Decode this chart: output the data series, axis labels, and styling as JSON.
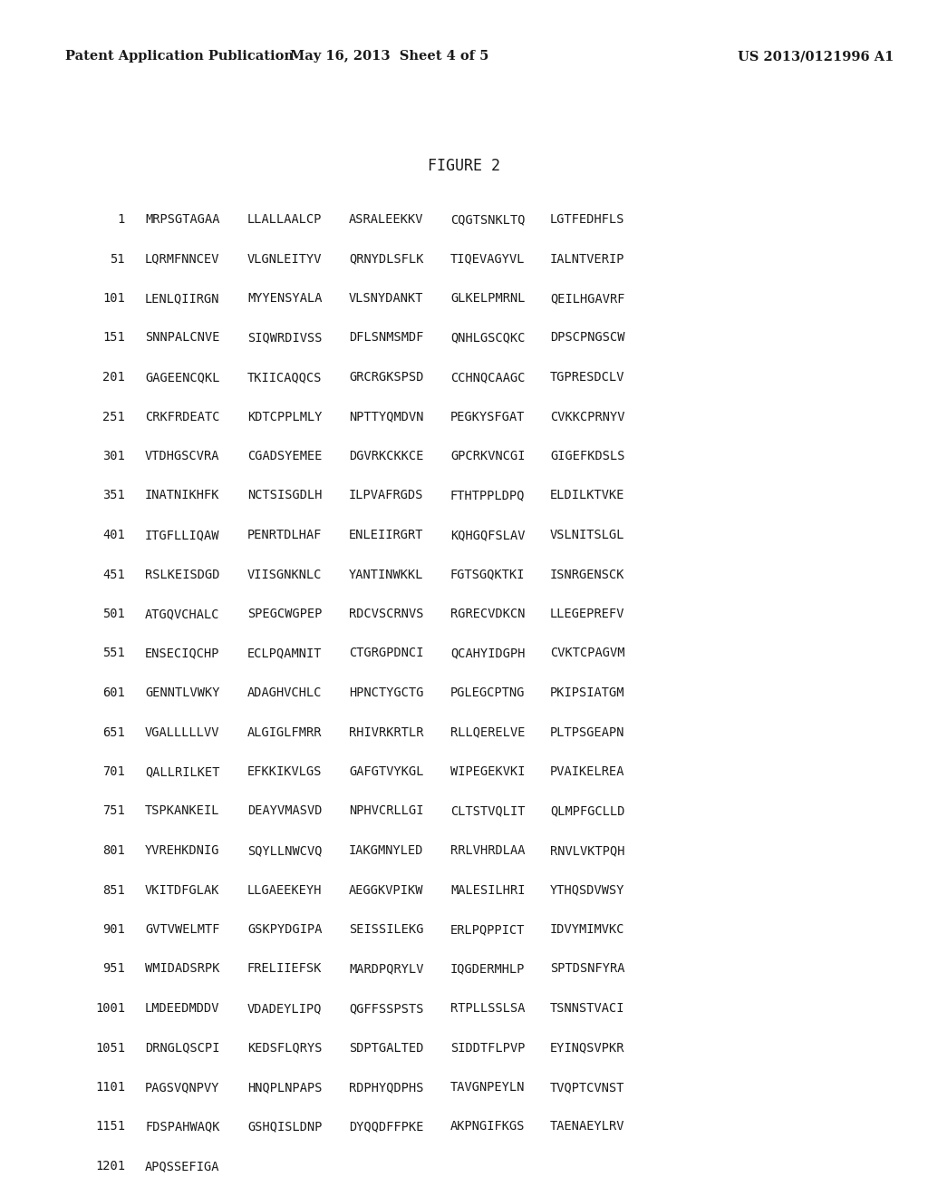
{
  "header_left": "Patent Application Publication",
  "header_mid": "May 16, 2013  Sheet 4 of 5",
  "header_right": "US 2013/0121996 A1",
  "figure_title": "FIGURE 2",
  "background_color": "#ffffff",
  "text_color": "#1a1a1a",
  "header_fontsize": 10.5,
  "title_fontsize": 12,
  "sequence_fontsize": 9.8,
  "sequence_lines": [
    {
      "num": "1",
      "seqs": [
        "MRPSGTAGAA",
        "LLALLAALCP",
        "ASRALEEKKV",
        "CQGTSNKLTQ",
        "LGTFEDHFLS"
      ]
    },
    {
      "num": "51",
      "seqs": [
        "LQRMFNNCEV",
        "VLGNLEITYV",
        "QRNYDLSFLK",
        "TIQEVAGYVL",
        "IALNTVERIP"
      ]
    },
    {
      "num": "101",
      "seqs": [
        "LENLQIIRGN",
        "MYYENSYALA",
        "VLSNYDANKT",
        "GLKELPMRNL",
        "QEILHGAVRF"
      ]
    },
    {
      "num": "151",
      "seqs": [
        "SNNPALCNVE",
        "SIQWRDIVSS",
        "DFLSNMSMDF",
        "QNHLGSCQKC",
        "DPSCPNGSCW"
      ]
    },
    {
      "num": "201",
      "seqs": [
        "GAGEENCQKL",
        "TKIICAQQCS",
        "GRCRGKSPSD",
        "CCHNQCAAGC",
        "TGPRESDCLV"
      ]
    },
    {
      "num": "251",
      "seqs": [
        "CRKFRDEATC",
        "KDTCPPLMLY",
        "NPTTYQMDVN",
        "PEGKYSFGAT",
        "CVKKCPRNYV"
      ]
    },
    {
      "num": "301",
      "seqs": [
        "VTDHGSCVRA",
        "CGADSYEMEE",
        "DGVRKCKKCE",
        "GPCRKVNCGI",
        "GIGEFKDSLS"
      ]
    },
    {
      "num": "351",
      "seqs": [
        "INATNIKHFK",
        "NCTSISGDLH",
        "ILPVAFRGDS",
        "FTHTPPLDPQ",
        "ELDILKTVKE"
      ]
    },
    {
      "num": "401",
      "seqs": [
        "ITGFLLIQAW",
        "PENRTDLHAF",
        "ENLEIIRGRT",
        "KQHGQFSLAV",
        "VSLNITSLGL"
      ]
    },
    {
      "num": "451",
      "seqs": [
        "RSLKEISDGD",
        "VIISGNKNLC",
        "YANTINWKKL",
        "FGTSGQKTKI",
        "ISNRGENSCK"
      ]
    },
    {
      "num": "501",
      "seqs": [
        "ATGQVCHALC",
        "SPEGCWGPEP",
        "RDCVSCRNVS",
        "RGRECVDKCN",
        "LLEGEPREFV"
      ]
    },
    {
      "num": "551",
      "seqs": [
        "ENSECIQCHP",
        "ECLPQAMNIT",
        "CTGRGPDNCI",
        "QCAHYIDGPH",
        "CVKTCPAGVM"
      ]
    },
    {
      "num": "601",
      "seqs": [
        "GENNTLVWKY",
        "ADAGHVCHLC",
        "HPNCTYGCTG",
        "PGLEGCPTNG",
        "PKIPSIATGM"
      ]
    },
    {
      "num": "651",
      "seqs": [
        "VGALLLLLVV",
        "ALGIGLFMRR",
        "RHIVRKRTLR",
        "RLLQERELVE",
        "PLTPSGEAPN"
      ]
    },
    {
      "num": "701",
      "seqs": [
        "QALLRILKET",
        "EFKKIKVLGS",
        "GAFGTVYKGL",
        "WIPEGEKVKI",
        "PVAIKELREA"
      ]
    },
    {
      "num": "751",
      "seqs": [
        "TSPKANKEIL",
        "DEAYVMASVD",
        "NPHVCRLLGI",
        "CLTSTVQLIT",
        "QLMPFGCLLD"
      ]
    },
    {
      "num": "801",
      "seqs": [
        "YVREHKDNIG",
        "SQYLLNWCVQ",
        "IAKGMNYLED",
        "RRLVHRDLAA",
        "RNVLVKTPQH"
      ]
    },
    {
      "num": "851",
      "seqs": [
        "VKITDFGLAK",
        "LLGAEEKEYH",
        "AEGGKVPIKW",
        "MALESILHRI",
        "YTHQSDVWSY"
      ]
    },
    {
      "num": "901",
      "seqs": [
        "GVTVWELMTF",
        "GSKPYDGIPA",
        "SEISSILEKG",
        "ERLPQPPICT",
        "IDVYMIMVKC"
      ]
    },
    {
      "num": "951",
      "seqs": [
        "WMIDADSRPK",
        "FRELIIEFSK",
        "MARDPQRYLV",
        "IQGDERMHLP",
        "SPTDSNFYRA"
      ]
    },
    {
      "num": "1001",
      "seqs": [
        "LMDEEDMDDV",
        "VDADEYLIPQ",
        "QGFFSSPSTS",
        "RTPLLSSLSA",
        "TSNNSTVACI"
      ]
    },
    {
      "num": "1051",
      "seqs": [
        "DRNGLQSCPI",
        "KEDSFLQRYS",
        "SDPTGALTED",
        "SIDDTFLPVP",
        "EYINQSVPKR"
      ]
    },
    {
      "num": "1101",
      "seqs": [
        "PAGSVQNPVY",
        "HNQPLNPAPS",
        "RDPHYQDPHS",
        "TAVGNPEYLN",
        "TVQPTCVNST"
      ]
    },
    {
      "num": "1151",
      "seqs": [
        "FDSPAHWAQK",
        "GSHQISLDNP",
        "DYQQDFFPKE",
        "AKPNGIFKGS",
        "TAENAEYLRV"
      ]
    },
    {
      "num": "1201",
      "seqs": [
        "APQSSEFIGA"
      ]
    }
  ]
}
